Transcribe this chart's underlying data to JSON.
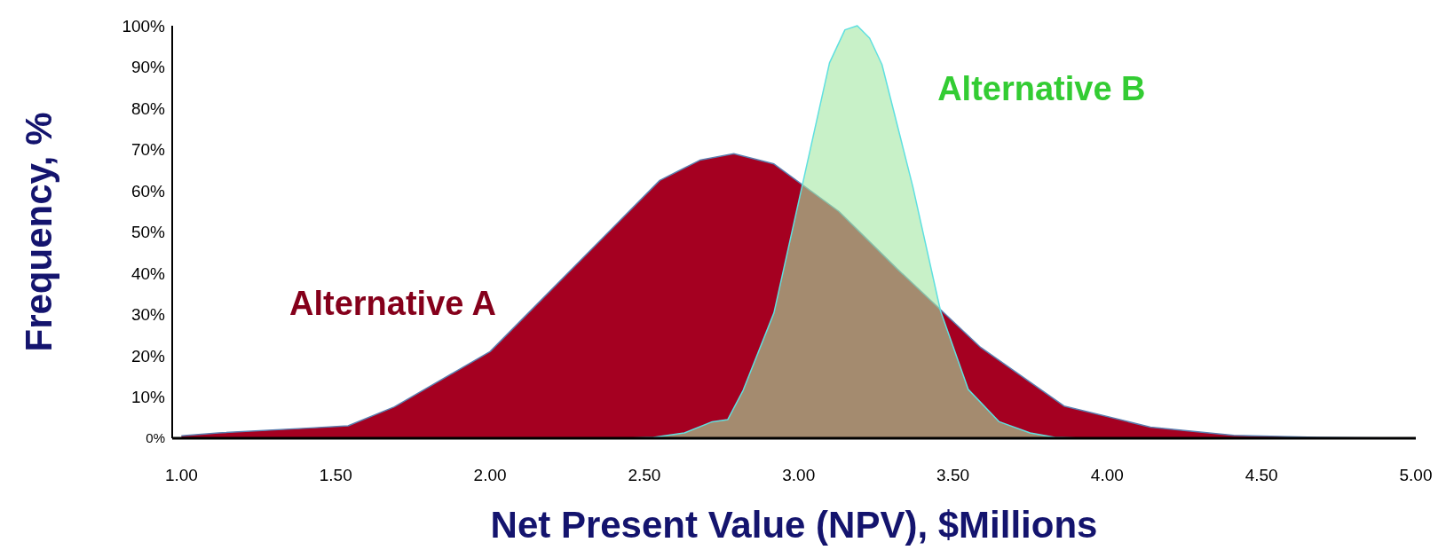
{
  "chart_data": {
    "type": "area",
    "xlabel": "Net Present Value (NPV), $Millions",
    "ylabel": "Frequency, %",
    "grid": false,
    "xlim": [
      0.97,
      5.0
    ],
    "ylim": [
      0,
      100
    ],
    "xticks": [
      {
        "value": 1,
        "label": "1.00"
      },
      {
        "value": 1.5,
        "label": "1.50"
      },
      {
        "value": 2,
        "label": "2.00"
      },
      {
        "value": 2.5,
        "label": "2.50"
      },
      {
        "value": 3,
        "label": "3.00"
      },
      {
        "value": 3.5,
        "label": "3.50"
      },
      {
        "value": 4,
        "label": "4.00"
      },
      {
        "value": 4.5,
        "label": "4.50"
      },
      {
        "value": 5,
        "label": "5.00"
      }
    ],
    "yticks": [
      {
        "value": 0,
        "label": "0%"
      },
      {
        "value": 10,
        "label": "10%"
      },
      {
        "value": 20,
        "label": "20%"
      },
      {
        "value": 30,
        "label": "30%"
      },
      {
        "value": 40,
        "label": "40%"
      },
      {
        "value": 50,
        "label": "50%"
      },
      {
        "value": 60,
        "label": "60%"
      },
      {
        "value": 70,
        "label": "70%"
      },
      {
        "value": 80,
        "label": "80%"
      },
      {
        "value": 90,
        "label": "90%"
      },
      {
        "value": 100,
        "label": "100%"
      }
    ],
    "series": [
      {
        "name": "Alternative A",
        "color": "#a50021",
        "x": [
          1.0,
          1.12,
          1.42,
          1.54,
          1.69,
          2.0,
          2.55,
          2.68,
          2.79,
          2.92,
          3.13,
          3.32,
          3.59,
          3.86,
          4.14,
          4.41,
          4.68,
          4.98
        ],
        "values": [
          0.6,
          1.3,
          2.5,
          3,
          7.6,
          21,
          62.5,
          67.4,
          69,
          66.5,
          55,
          41,
          22,
          7.8,
          2.7,
          0.7,
          0.2,
          0
        ]
      },
      {
        "name": "Alternative B",
        "color": "#a4e8a4",
        "x": [
          2.44,
          2.53,
          2.63,
          2.72,
          2.77,
          2.82,
          2.92,
          3.1,
          3.15,
          3.19,
          3.23,
          3.27,
          3.37,
          3.46,
          3.55,
          3.65,
          3.75,
          3.83,
          3.92
        ],
        "values": [
          0,
          0.2,
          1.3,
          4,
          4.5,
          11.6,
          30.4,
          91,
          99,
          100,
          97,
          90.6,
          61,
          30.8,
          11.8,
          4,
          1.3,
          0.2,
          0
        ]
      }
    ]
  }
}
